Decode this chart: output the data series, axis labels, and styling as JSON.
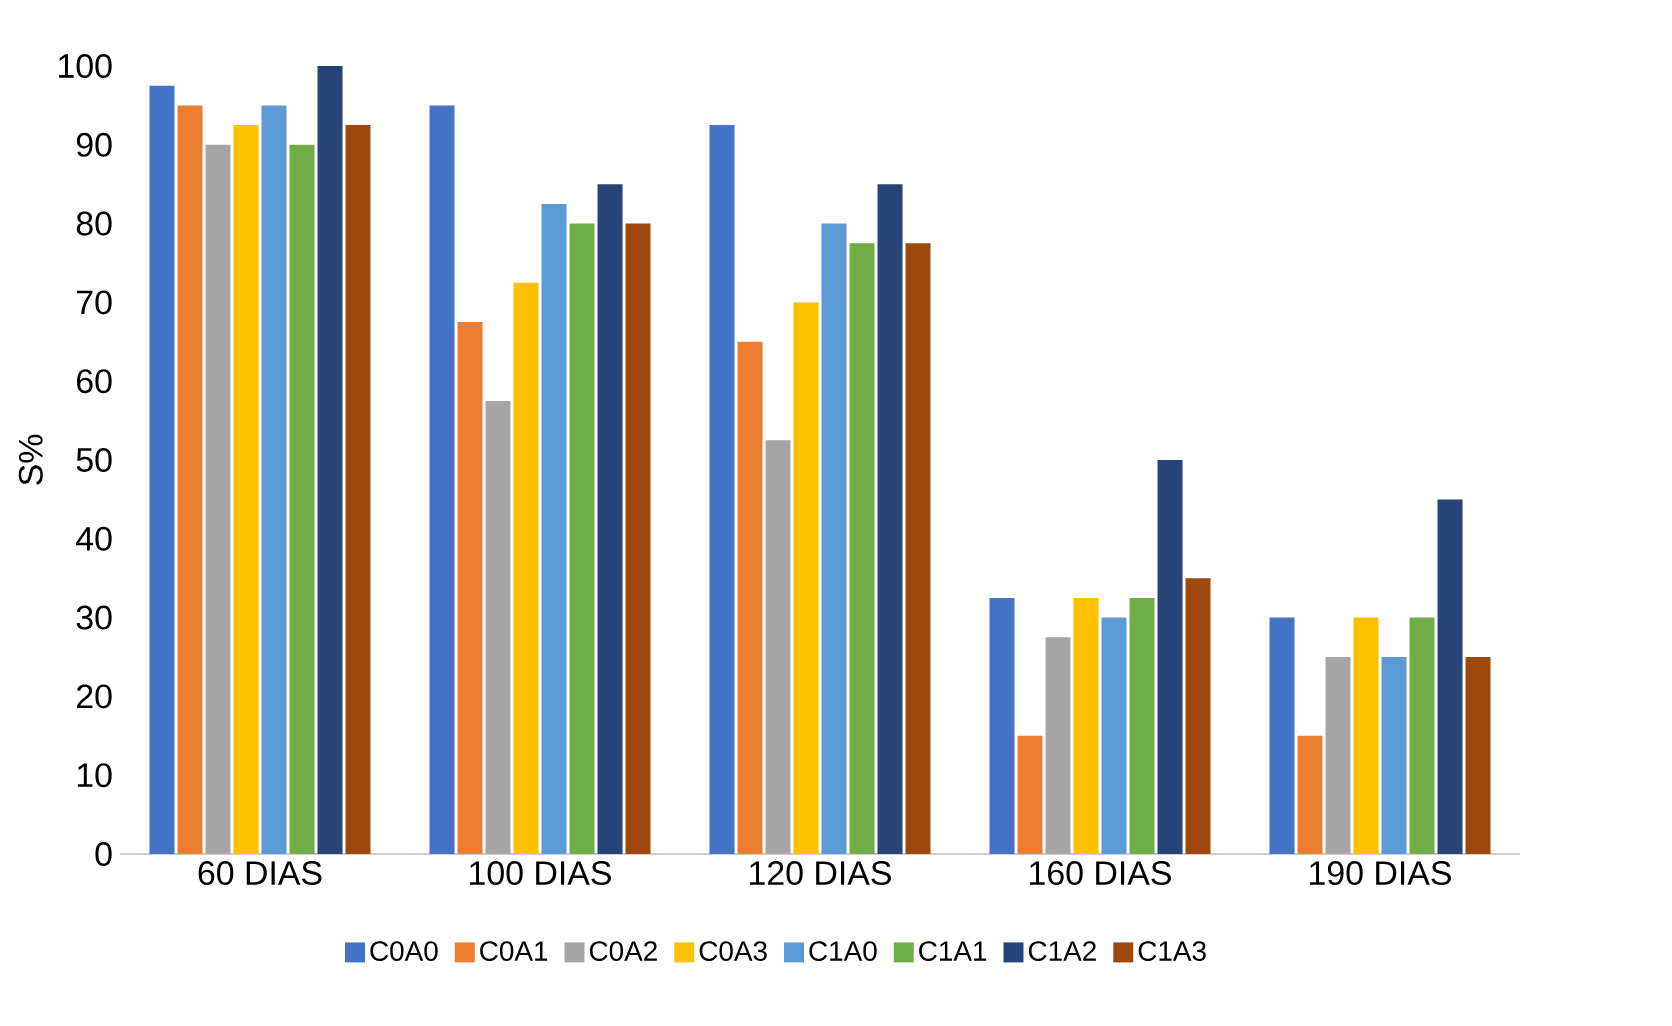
{
  "chart_data": {
    "type": "bar",
    "ylabel": "S%",
    "categories": [
      "60 DIAS",
      "100 DIAS",
      "120 DIAS",
      "160 DIAS",
      "190 DIAS"
    ],
    "series": [
      {
        "name": "C0A0",
        "color": "#4472c4",
        "values": [
          97.5,
          95,
          92.5,
          32.5,
          30
        ]
      },
      {
        "name": "C0A1",
        "color": "#ed7d31",
        "values": [
          95,
          67.5,
          65,
          15,
          15
        ]
      },
      {
        "name": "C0A2",
        "color": "#a5a5a5",
        "values": [
          90,
          57.5,
          52.5,
          27.5,
          25
        ]
      },
      {
        "name": "C0A3",
        "color": "#ffc000",
        "values": [
          92.5,
          72.5,
          70,
          32.5,
          30
        ]
      },
      {
        "name": "C1A0",
        "color": "#5b9bd5",
        "values": [
          95,
          82.5,
          80,
          30,
          25
        ]
      },
      {
        "name": "C1A1",
        "color": "#70ad47",
        "values": [
          90,
          80,
          77.5,
          32.5,
          30
        ]
      },
      {
        "name": "C1A2",
        "color": "#264478",
        "values": [
          100,
          85,
          85,
          50,
          45
        ]
      },
      {
        "name": "C1A3",
        "color": "#9e480e",
        "values": [
          92.5,
          80,
          77.5,
          35,
          25
        ]
      }
    ],
    "ylim": [
      0,
      100
    ],
    "yticks": [
      0,
      10,
      20,
      30,
      40,
      50,
      60,
      70,
      80,
      90,
      100
    ],
    "grid": false,
    "legend": "bottom"
  }
}
